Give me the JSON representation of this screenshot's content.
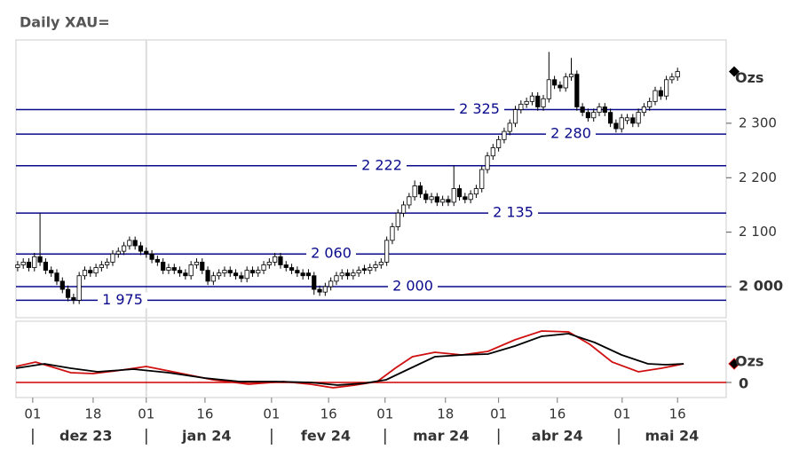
{
  "chart_data": [
    {
      "type": "candlestick",
      "title": "Daily XAU=",
      "unit": "Ozs",
      "up_color": "#ffffff",
      "down_color": "#000000",
      "level_color": "#0a0a8c",
      "xlim": [
        -0.3,
        126.7
      ],
      "ylim": [
        1943,
        2453
      ],
      "yticks": [
        {
          "value": 2000,
          "label": "2 000"
        },
        {
          "value": 2100,
          "label": "2 100"
        },
        {
          "value": 2200,
          "label": "2 200"
        },
        {
          "value": 2300,
          "label": "2 300"
        }
      ],
      "year_line": 23,
      "levels": [
        {
          "value": 2325,
          "label": "2 325"
        },
        {
          "value": 2280,
          "label": "2 280"
        },
        {
          "value": 2222,
          "label": "2 222"
        },
        {
          "value": 2135,
          "label": "2 135"
        },
        {
          "value": 2060,
          "label": "2 060"
        },
        {
          "value": 2000,
          "label": "2 000"
        },
        {
          "value": 1975,
          "label": "1 975"
        }
      ],
      "open": [
        2035,
        2040,
        2045,
        2035,
        2055,
        2045,
        2030,
        2025,
        2010,
        1995,
        1980,
        1975,
        2020,
        2030,
        2025,
        2035,
        2040,
        2045,
        2060,
        2065,
        2075,
        2085,
        2075,
        2065,
        2060,
        2050,
        2045,
        2030,
        2035,
        2030,
        2025,
        2020,
        2040,
        2045,
        2030,
        2010,
        2020,
        2025,
        2030,
        2025,
        2020,
        2015,
        2030,
        2025,
        2030,
        2040,
        2045,
        2055,
        2040,
        2035,
        2030,
        2025,
        2025,
        2020,
        1995,
        1990,
        2000,
        2010,
        2020,
        2025,
        2020,
        2025,
        2033,
        2030,
        2035,
        2040,
        2045,
        2085,
        2110,
        2135,
        2150,
        2165,
        2185,
        2170,
        2160,
        2165,
        2155,
        2160,
        2155,
        2180,
        2165,
        2160,
        2170,
        2180,
        2215,
        2240,
        2255,
        2270,
        2285,
        2300,
        2325,
        2335,
        2340,
        2350,
        2330,
        2345,
        2380,
        2370,
        2365,
        2385,
        2390,
        2330,
        2320,
        2310,
        2320,
        2330,
        2320,
        2300,
        2290,
        2305,
        2310,
        2300,
        2320,
        2330,
        2340,
        2360,
        2350,
        2380,
        2385
      ],
      "high": [
        2047,
        2052,
        2052,
        2062,
        2135,
        2052,
        2037,
        2032,
        2017,
        2002,
        1987,
        2027,
        2037,
        2037,
        2042,
        2047,
        2052,
        2067,
        2072,
        2082,
        2092,
        2092,
        2082,
        2072,
        2067,
        2057,
        2052,
        2042,
        2042,
        2037,
        2032,
        2047,
        2052,
        2052,
        2037,
        2027,
        2032,
        2037,
        2037,
        2032,
        2027,
        2037,
        2037,
        2037,
        2047,
        2052,
        2062,
        2062,
        2047,
        2042,
        2037,
        2032,
        2032,
        2027,
        2002,
        2007,
        2017,
        2027,
        2032,
        2032,
        2032,
        2037,
        2040,
        2042,
        2047,
        2052,
        2092,
        2117,
        2142,
        2157,
        2172,
        2195,
        2192,
        2177,
        2172,
        2172,
        2167,
        2167,
        2222,
        2187,
        2172,
        2177,
        2187,
        2222,
        2247,
        2262,
        2277,
        2292,
        2307,
        2332,
        2342,
        2347,
        2357,
        2357,
        2352,
        2431,
        2387,
        2377,
        2392,
        2420,
        2397,
        2337,
        2327,
        2327,
        2337,
        2337,
        2327,
        2307,
        2317,
        2317,
        2317,
        2327,
        2337,
        2347,
        2367,
        2367,
        2387,
        2392,
        2402
      ],
      "low": [
        2028,
        2033,
        2028,
        2028,
        2038,
        2023,
        2018,
        2003,
        1988,
        1973,
        1968,
        1968,
        2013,
        2018,
        2018,
        2028,
        2033,
        2038,
        2053,
        2058,
        2068,
        2068,
        2058,
        2053,
        2043,
        2038,
        2023,
        2023,
        2023,
        2018,
        2013,
        2013,
        2033,
        2023,
        2003,
        2003,
        2013,
        2018,
        2018,
        2013,
        2008,
        2008,
        2018,
        2018,
        2023,
        2033,
        2038,
        2033,
        2028,
        2023,
        2018,
        2013,
        2013,
        1985,
        1983,
        1983,
        1993,
        2003,
        2013,
        2013,
        2013,
        2018,
        2023,
        2023,
        2028,
        2033,
        2038,
        2078,
        2103,
        2128,
        2143,
        2158,
        2163,
        2153,
        2153,
        2148,
        2148,
        2148,
        2148,
        2158,
        2153,
        2153,
        2163,
        2173,
        2208,
        2233,
        2248,
        2263,
        2278,
        2293,
        2318,
        2328,
        2333,
        2323,
        2323,
        2338,
        2363,
        2358,
        2358,
        2378,
        2323,
        2313,
        2303,
        2303,
        2313,
        2313,
        2293,
        2283,
        2283,
        2298,
        2293,
        2293,
        2313,
        2323,
        2333,
        2343,
        2343,
        2373,
        2378
      ],
      "close": [
        2040,
        2045,
        2035,
        2055,
        2045,
        2030,
        2025,
        2010,
        1995,
        1980,
        1975,
        2020,
        2030,
        2025,
        2035,
        2040,
        2045,
        2060,
        2065,
        2075,
        2085,
        2075,
        2065,
        2060,
        2050,
        2045,
        2030,
        2035,
        2030,
        2025,
        2020,
        2040,
        2045,
        2030,
        2010,
        2020,
        2025,
        2030,
        2025,
        2020,
        2015,
        2030,
        2025,
        2030,
        2040,
        2045,
        2055,
        2040,
        2035,
        2030,
        2025,
        2020,
        2020,
        1995,
        1990,
        2000,
        2010,
        2020,
        2025,
        2020,
        2025,
        2030,
        2030,
        2035,
        2040,
        2045,
        2085,
        2110,
        2135,
        2150,
        2165,
        2185,
        2170,
        2160,
        2165,
        2155,
        2160,
        2155,
        2180,
        2165,
        2160,
        2170,
        2180,
        2215,
        2240,
        2255,
        2270,
        2285,
        2300,
        2325,
        2335,
        2340,
        2350,
        2330,
        2345,
        2380,
        2370,
        2365,
        2385,
        2390,
        2330,
        2320,
        2310,
        2320,
        2330,
        2320,
        2300,
        2290,
        2310,
        2310,
        2300,
        2320,
        2330,
        2340,
        2360,
        2350,
        2380,
        2385,
        2395
      ]
    },
    {
      "type": "line",
      "unit": "Ozs",
      "zero_color": "#d00000",
      "xlim": [
        -0.3,
        126.7
      ],
      "ylim": [
        -17,
        69
      ],
      "yticks": [
        0
      ],
      "series": [
        {
          "color": "#d01010",
          "x": [
            -0.3,
            3.2,
            6.4,
            9.5,
            13.5,
            17.5,
            23,
            28.6,
            34.9,
            41.3,
            47.6,
            52.4,
            56.4,
            60.3,
            64.3,
            67.5,
            70.6,
            74.6,
            79.4,
            84.1,
            88.9,
            93.7,
            98.5,
            102.3,
            106.3,
            111,
            115.1,
            119.1
          ],
          "values": [
            18,
            23,
            17,
            11,
            10,
            13,
            18,
            11,
            3,
            -2,
            1,
            -2,
            -6,
            -3,
            1,
            16,
            29,
            34,
            31,
            35,
            48,
            58,
            57,
            43,
            23,
            12,
            16,
            21
          ]
        },
        {
          "color": "#000000",
          "x": [
            -0.3,
            4.8,
            9.5,
            14.3,
            20.7,
            27,
            33.4,
            39.7,
            46.1,
            52.4,
            57.2,
            61.9,
            65.9,
            69.9,
            74.6,
            79.4,
            84.1,
            88.9,
            93.7,
            98.5,
            103.2,
            108,
            112.7,
            115.9,
            119.1
          ],
          "values": [
            16,
            21,
            16,
            12,
            15,
            11,
            5,
            1,
            1,
            0,
            -3,
            -1,
            3,
            15,
            29,
            31,
            32,
            41,
            52,
            55,
            45,
            31,
            21,
            20,
            21
          ]
        }
      ],
      "xticks": [
        {
          "value": 2.7,
          "label": "01"
        },
        {
          "value": 13.5,
          "label": "18"
        },
        {
          "value": 23,
          "label": "01"
        },
        {
          "value": 33.5,
          "label": "16"
        },
        {
          "value": 45.4,
          "label": "01"
        },
        {
          "value": 55.6,
          "label": "16"
        },
        {
          "value": 65.7,
          "label": "01"
        },
        {
          "value": 76.5,
          "label": "18"
        },
        {
          "value": 86,
          "label": "01"
        },
        {
          "value": 96.5,
          "label": "16"
        },
        {
          "value": 108.1,
          "label": "01"
        },
        {
          "value": 118,
          "label": "16"
        }
      ],
      "month_ticks": [
        {
          "value": 12.2,
          "label": "dez 23"
        },
        {
          "value": 33.8,
          "label": "jan 24"
        },
        {
          "value": 55.1,
          "label": "fev 24"
        },
        {
          "value": 75.7,
          "label": "mar 24"
        },
        {
          "value": 96.5,
          "label": "abr 24"
        },
        {
          "value": 117,
          "label": "mai 24"
        }
      ],
      "month_separators": [
        2.7,
        23,
        45.4,
        65.7,
        86,
        107.5
      ]
    }
  ]
}
